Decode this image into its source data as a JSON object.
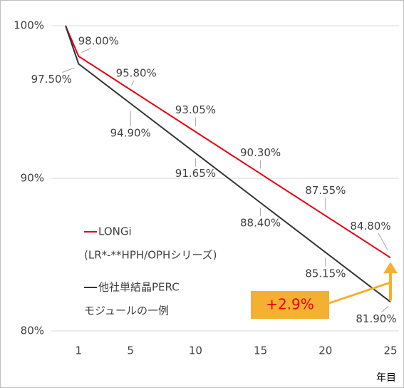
{
  "chart_data": {
    "type": "line",
    "x": [
      0,
      1,
      5,
      10,
      15,
      20,
      25
    ],
    "xlim": [
      0,
      25
    ],
    "xticks": [
      1,
      5,
      10,
      15,
      20,
      25
    ],
    "xlabel": "年目",
    "ylim": [
      80,
      100
    ],
    "yticks": [
      {
        "value": 80,
        "label": "80%"
      },
      {
        "value": 90,
        "label": "90%"
      },
      {
        "value": 100,
        "label": "100%"
      }
    ],
    "grid": true,
    "series": [
      {
        "name": "LONGi",
        "subname": "(LR*-**HPH/OPHシリーズ)",
        "color": "#e60012",
        "values": [
          100,
          98,
          95.8,
          93.05,
          90.3,
          87.55,
          84.8
        ],
        "value_labels": [
          null,
          "98.00%",
          "95.80%",
          "93.05%",
          "90.30%",
          "87.55%",
          "84.80%"
        ]
      },
      {
        "name": "他社単結晶PERC",
        "subname": "モジュールの一例",
        "color": "#333333",
        "values": [
          100,
          97.5,
          94.9,
          91.65,
          88.4,
          85.15,
          81.9
        ],
        "value_labels": [
          null,
          "97.50%",
          "94.90%",
          "91.65%",
          "88.40%",
          "85.15%",
          "81.90%"
        ]
      }
    ],
    "annotation": "+2.9%"
  }
}
